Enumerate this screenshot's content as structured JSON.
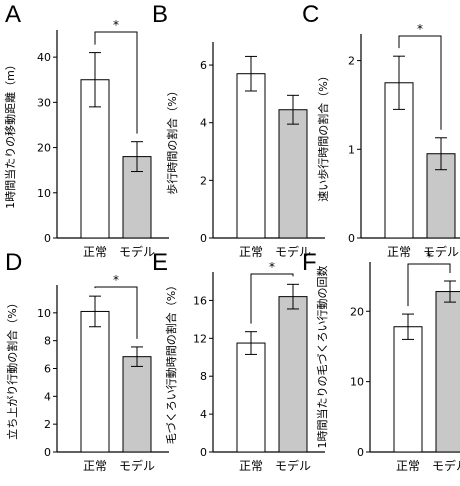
{
  "chart_data": [
    {
      "letter": "A",
      "type": "bar",
      "ylabel": "1時間当たりの移動距離（m）",
      "categories": [
        "正常",
        "モデル"
      ],
      "values": [
        35,
        18
      ],
      "errors": [
        6,
        3.3
      ],
      "ylim": [
        0,
        46
      ],
      "yticks": [
        0,
        10,
        20,
        30,
        40
      ],
      "significance": "*",
      "colors": [
        "#ffffff",
        "#c8c8c8"
      ]
    },
    {
      "letter": "B",
      "type": "bar",
      "ylabel": "歩行時間の割合（%）",
      "categories": [
        "正常",
        "モデル"
      ],
      "values": [
        5.7,
        4.45
      ],
      "errors": [
        0.6,
        0.5
      ],
      "ylim": [
        0,
        6.8
      ],
      "yticks": [
        0,
        2,
        4,
        6
      ],
      "significance": "",
      "colors": [
        "#ffffff",
        "#c8c8c8"
      ]
    },
    {
      "letter": "C",
      "type": "bar",
      "ylabel": "速い歩行時間の割合（%）",
      "categories": [
        "正常",
        "モデル"
      ],
      "values": [
        1.75,
        0.95
      ],
      "errors": [
        0.3,
        0.18
      ],
      "ylim": [
        0,
        2.3
      ],
      "yticks": [
        0,
        1,
        2
      ],
      "significance": "*",
      "colors": [
        "#ffffff",
        "#c8c8c8"
      ]
    },
    {
      "letter": "D",
      "type": "bar",
      "ylabel": "立ち上がり行動の割合（%）",
      "categories": [
        "正常",
        "モデル"
      ],
      "values": [
        10.1,
        6.85
      ],
      "errors": [
        1.1,
        0.7
      ],
      "ylim": [
        0,
        12
      ],
      "yticks": [
        0,
        2,
        4,
        6,
        8,
        10
      ],
      "significance": "*",
      "colors": [
        "#ffffff",
        "#c8c8c8"
      ]
    },
    {
      "letter": "E",
      "type": "bar",
      "ylabel": "毛づくろい行動時間の割合（%）",
      "categories": [
        "正常",
        "モデル"
      ],
      "values": [
        11.5,
        16.4
      ],
      "errors": [
        1.2,
        1.3
      ],
      "ylim": [
        0,
        19
      ],
      "yticks": [
        0,
        4,
        8,
        12,
        16
      ],
      "significance": "*",
      "colors": [
        "#ffffff",
        "#c8c8c8"
      ]
    },
    {
      "letter": "F",
      "type": "bar",
      "ylabel": "1時間当たりの毛づくろい行動の回数",
      "categories": [
        "正常",
        "モデル"
      ],
      "values": [
        17.8,
        22.8
      ],
      "errors": [
        1.8,
        1.5
      ],
      "ylim": [
        0,
        27
      ],
      "yticks": [
        0,
        10,
        20
      ],
      "significance": "*",
      "colors": [
        "#ffffff",
        "#c8c8c8"
      ]
    }
  ]
}
